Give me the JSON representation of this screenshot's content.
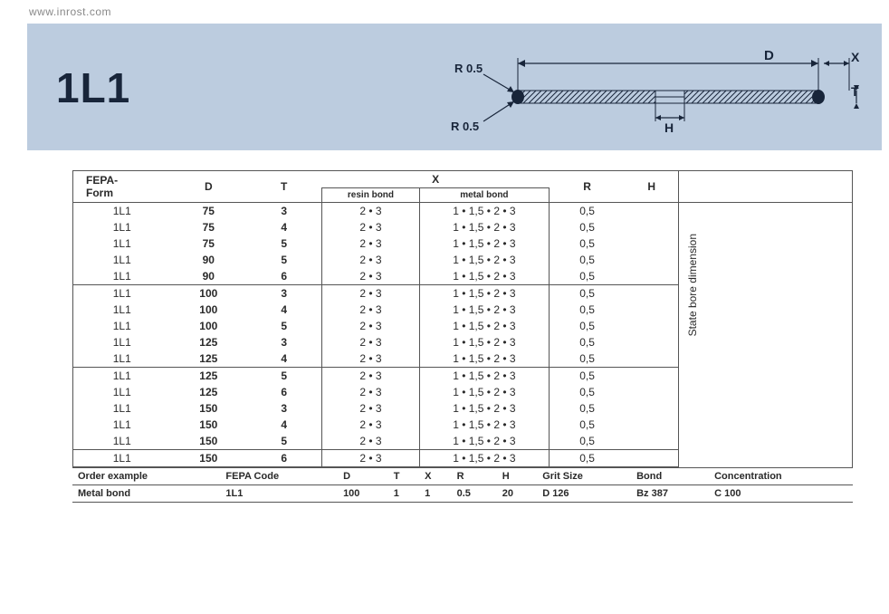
{
  "url": "www.inrost.com",
  "code": "1L1",
  "diagram": {
    "labels": {
      "D": "D",
      "X": "X",
      "T": "T",
      "H": "H",
      "R1": "R 0.5",
      "R2": "R 0.5"
    },
    "colors": {
      "stroke": "#18253a",
      "hatch": "#18253a",
      "bg": "#bcccdf",
      "end": "#18253a"
    }
  },
  "columns": {
    "fepa": "FEPA-\nForm",
    "D": "D",
    "T": "T",
    "X": "X",
    "resin": "resin bond",
    "metal": "metal bond",
    "R": "R",
    "H": "H",
    "vtext": "State bore dimension"
  },
  "groups": [
    [
      {
        "f": "1L1",
        "D": "75",
        "T": "3",
        "resin": "2 • 3",
        "metal": "1 • 1,5 • 2 • 3",
        "R": "0,5"
      },
      {
        "f": "1L1",
        "D": "75",
        "T": "4",
        "resin": "2 • 3",
        "metal": "1 • 1,5 • 2 • 3",
        "R": "0,5"
      },
      {
        "f": "1L1",
        "D": "75",
        "T": "5",
        "resin": "2 • 3",
        "metal": "1 • 1,5 • 2 • 3",
        "R": "0,5"
      },
      {
        "f": "1L1",
        "D": "90",
        "T": "5",
        "resin": "2 • 3",
        "metal": "1 • 1,5 • 2 • 3",
        "R": "0,5"
      },
      {
        "f": "1L1",
        "D": "90",
        "T": "6",
        "resin": "2 • 3",
        "metal": "1 • 1,5 • 2 • 3",
        "R": "0,5"
      }
    ],
    [
      {
        "f": "1L1",
        "D": "100",
        "T": "3",
        "resin": "2 • 3",
        "metal": "1 • 1,5 • 2 • 3",
        "R": "0,5"
      },
      {
        "f": "1L1",
        "D": "100",
        "T": "4",
        "resin": "2 • 3",
        "metal": "1 • 1,5 • 2 • 3",
        "R": "0,5"
      },
      {
        "f": "1L1",
        "D": "100",
        "T": "5",
        "resin": "2 • 3",
        "metal": "1 • 1,5 • 2 • 3",
        "R": "0,5"
      },
      {
        "f": "1L1",
        "D": "125",
        "T": "3",
        "resin": "2 • 3",
        "metal": "1 • 1,5 • 2 • 3",
        "R": "0,5"
      },
      {
        "f": "1L1",
        "D": "125",
        "T": "4",
        "resin": "2 • 3",
        "metal": "1 • 1,5 • 2 • 3",
        "R": "0,5"
      }
    ],
    [
      {
        "f": "1L1",
        "D": "125",
        "T": "5",
        "resin": "2 • 3",
        "metal": "1 • 1,5 • 2 • 3",
        "R": "0,5"
      },
      {
        "f": "1L1",
        "D": "125",
        "T": "6",
        "resin": "2 • 3",
        "metal": "1 • 1,5 • 2 • 3",
        "R": "0,5"
      },
      {
        "f": "1L1",
        "D": "150",
        "T": "3",
        "resin": "2 • 3",
        "metal": "1 • 1,5 • 2 • 3",
        "R": "0,5"
      },
      {
        "f": "1L1",
        "D": "150",
        "T": "4",
        "resin": "2 • 3",
        "metal": "1 • 1,5 • 2 • 3",
        "R": "0,5"
      },
      {
        "f": "1L1",
        "D": "150",
        "T": "5",
        "resin": "2 • 3",
        "metal": "1 • 1,5 • 2 • 3",
        "R": "0,5"
      }
    ],
    [
      {
        "f": "1L1",
        "D": "150",
        "T": "6",
        "resin": "2 • 3",
        "metal": "1 • 1,5 • 2 • 3",
        "R": "0,5"
      }
    ]
  ],
  "order": {
    "headers": [
      "Order example",
      "FEPA Code",
      "D",
      "T",
      "X",
      "R",
      "H",
      "Grit Size",
      "Bond",
      "Concentration"
    ],
    "row_label": "Metal bond",
    "values": [
      "1L1",
      "100",
      "1",
      "1",
      "0.5",
      "20",
      "D 126",
      "Bz 387",
      "C 100"
    ]
  }
}
